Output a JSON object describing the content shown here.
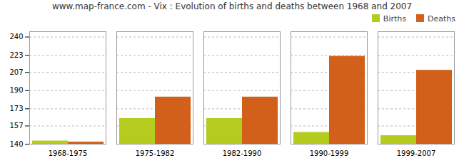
{
  "chart_data": {
    "type": "bar",
    "title": "www.map-france.com - Vix : Evolution of births and deaths between 1968 and 2007",
    "categories": [
      "1968-1975",
      "1975-1982",
      "1982-1990",
      "1990-1999",
      "1999-2007"
    ],
    "series": [
      {
        "name": "Births",
        "color": "#b5cc1e",
        "values": [
          143,
          164,
          164,
          151,
          148
        ]
      },
      {
        "name": "Deaths",
        "color": "#d2601a",
        "values": [
          142,
          184,
          184,
          222,
          209
        ]
      }
    ],
    "ylim": [
      140,
      245
    ],
    "yticks": [
      140,
      157,
      173,
      190,
      207,
      223,
      240
    ],
    "grid": true,
    "legend": "upper right"
  }
}
